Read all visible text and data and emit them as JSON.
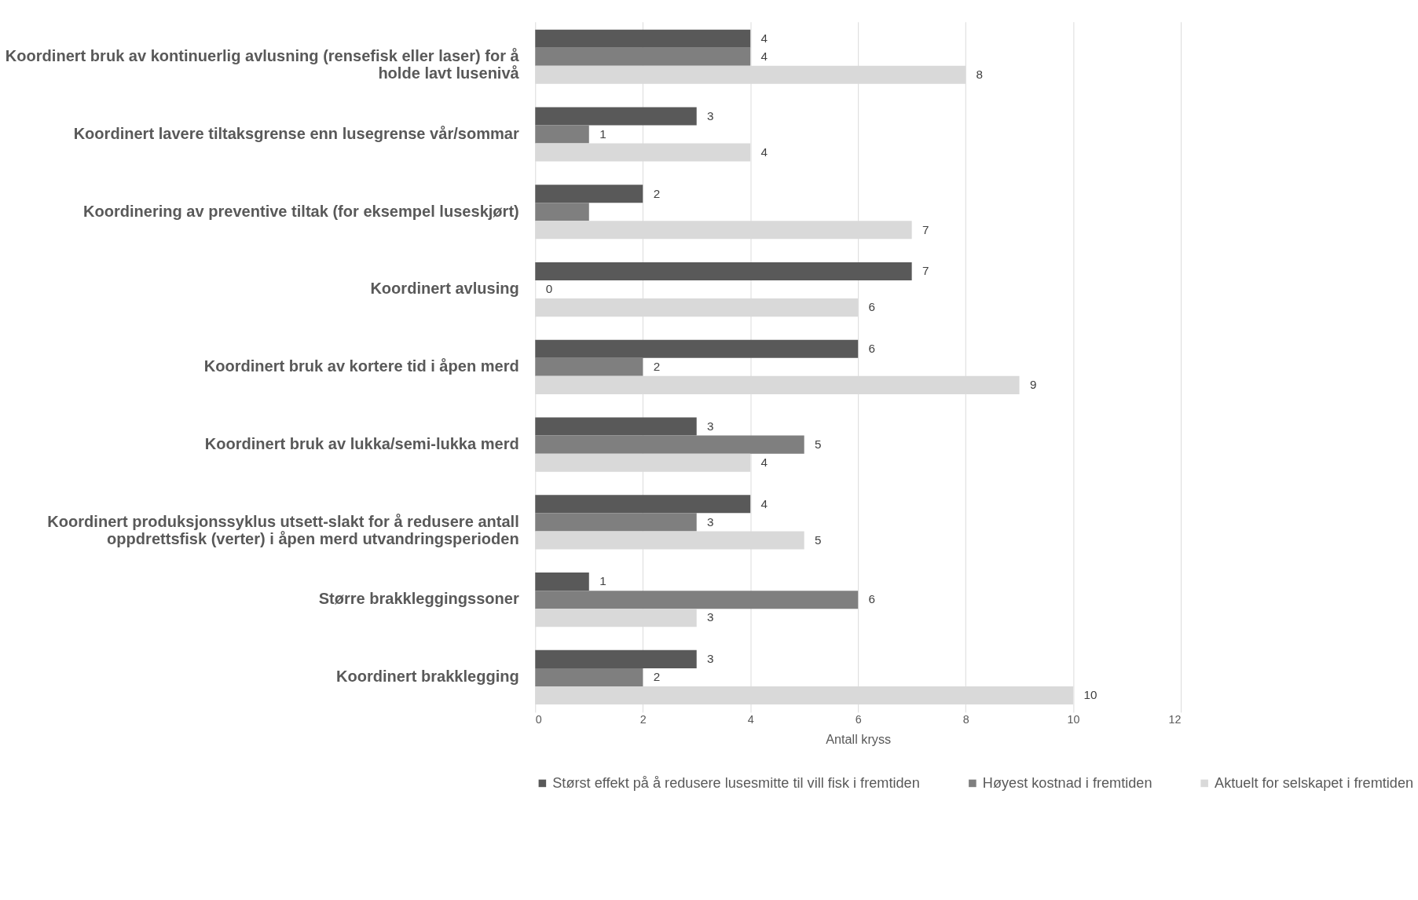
{
  "chart_data": {
    "type": "bar",
    "orientation": "horizontal",
    "xlabel": "Antall kryss",
    "categories": [
      "Koordinert bruk av kontinuerlig avlusning (rensefisk eller laser) for å holde lavt lusenivå",
      "Koordinert lavere tiltaksgrense enn lusegrense vår/sommar",
      "Koordinering av preventive tiltak (for eksempel luseskjørt)",
      "Koordinert avlusing",
      "Koordinert bruk av kortere tid i åpen merd",
      "Koordinert bruk av lukka/semi-lukka merd",
      "Koordinert produksjonssyklus utsett-slakt for å redusere antall oppdrettsfisk (verter) i åpen merd utvandringsperioden",
      "Større brakkleggingssoner",
      "Koordinert brakklegging"
    ],
    "series": [
      {
        "name": "Størst effekt på å redusere lusesmitte til vill fisk i fremtiden",
        "color": "#595959",
        "values": [
          4,
          3,
          2,
          7,
          6,
          3,
          4,
          1,
          3
        ],
        "value_labels": [
          "4",
          "3",
          "2",
          "7",
          "6",
          "3",
          "4",
          "1",
          "3"
        ]
      },
      {
        "name": "Høyest kostnad i fremtiden",
        "color": "#7f7f7f",
        "values": [
          4,
          1,
          1,
          0,
          2,
          5,
          3,
          6,
          2
        ],
        "value_labels": [
          "4",
          "1",
          null,
          "0",
          "2",
          "5",
          "3",
          "6",
          "2"
        ]
      },
      {
        "name": "Aktuelt for selskapet i fremtiden",
        "color": "#d9d9d9",
        "values": [
          8,
          4,
          7,
          6,
          9,
          4,
          5,
          3,
          10
        ],
        "value_labels": [
          "8",
          "4",
          "7",
          "6",
          "9",
          "4",
          "5",
          "3",
          "10"
        ]
      }
    ],
    "xlim": [
      0,
      12
    ],
    "xticks": [
      0,
      2,
      4,
      6,
      8,
      10,
      12
    ],
    "grid": "x",
    "legend": "bottom"
  }
}
